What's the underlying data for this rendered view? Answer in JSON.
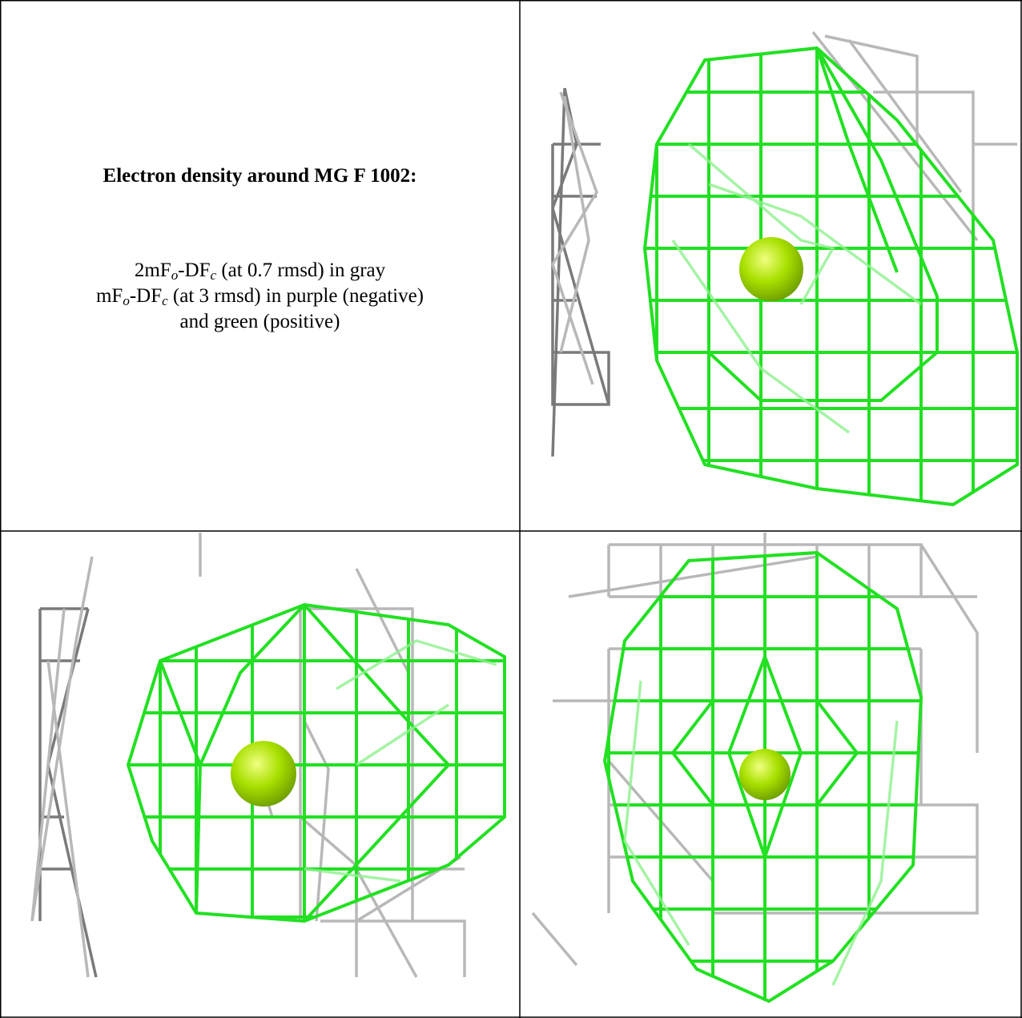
{
  "panel": {
    "title": "Electron density around MG F 1002:",
    "lines": [
      {
        "runs": [
          "2mF",
          "o",
          "-DF",
          "c",
          " (at 0.7 rmsd) in gray"
        ]
      },
      {
        "runs": [
          "mF",
          "o",
          "-DF",
          "c",
          " (at 3 rmsd) in purple (negative)"
        ]
      },
      {
        "runs": [
          "and green (positive)"
        ]
      }
    ]
  }
}
